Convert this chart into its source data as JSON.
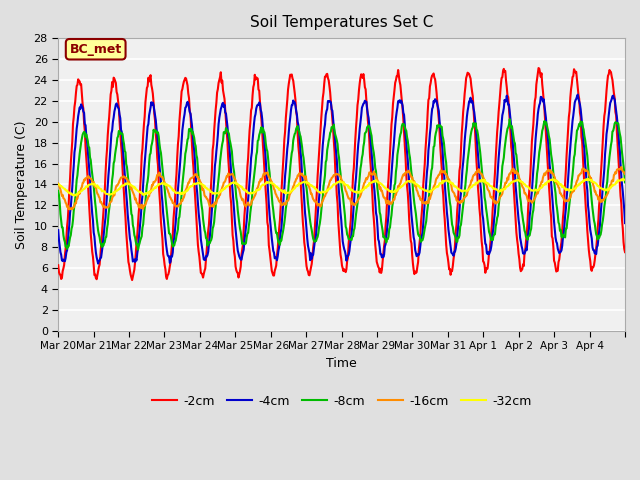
{
  "title": "Soil Temperatures Set C",
  "xlabel": "Time",
  "ylabel": "Soil Temperature (C)",
  "ylim": [
    0,
    28
  ],
  "yticks": [
    0,
    2,
    4,
    6,
    8,
    10,
    12,
    14,
    16,
    18,
    20,
    22,
    24,
    26,
    28
  ],
  "x_labels": [
    "Mar 20",
    "Mar 21",
    "Mar 22",
    "Mar 23",
    "Mar 24",
    "Mar 25",
    "Mar 26",
    "Mar 27",
    "Mar 28",
    "Mar 29",
    "Mar 30",
    "Mar 31",
    "Apr 1",
    "Apr 2",
    "Apr 3",
    "Apr 4",
    ""
  ],
  "annotation_text": "BC_met",
  "annotation_bg": "#FFFF99",
  "annotation_border": "#8B0000",
  "bg_color": "#E0E0E0",
  "plot_bg": "#F0F0F0",
  "grid_color": "#FFFFFF",
  "series": {
    "-2cm": {
      "color": "#FF0000",
      "lw": 1.5
    },
    "-4cm": {
      "color": "#0000CC",
      "lw": 1.5
    },
    "-8cm": {
      "color": "#00BB00",
      "lw": 1.5
    },
    "-16cm": {
      "color": "#FF8C00",
      "lw": 1.5
    },
    "-32cm": {
      "color": "#FFFF00",
      "lw": 1.5
    }
  },
  "n_days": 16,
  "pts_per_day": 48,
  "mean_2cm": [
    14.5,
    15.5
  ],
  "mean_4cm": [
    14.0,
    15.0
  ],
  "mean_8cm": [
    13.5,
    14.5
  ],
  "mean_16cm": [
    13.2,
    14.0
  ],
  "mean_32cm": [
    13.5,
    14.0
  ],
  "amp_2cm": 9.5,
  "amp_4cm": 7.5,
  "amp_8cm": 5.5,
  "amp_16cm": 1.5,
  "amp_32cm": 0.5,
  "phase_2cm": 0.33,
  "phase_4cm": 0.4,
  "phase_8cm": 0.5,
  "phase_16cm": 0.6,
  "phase_32cm": 0.7
}
